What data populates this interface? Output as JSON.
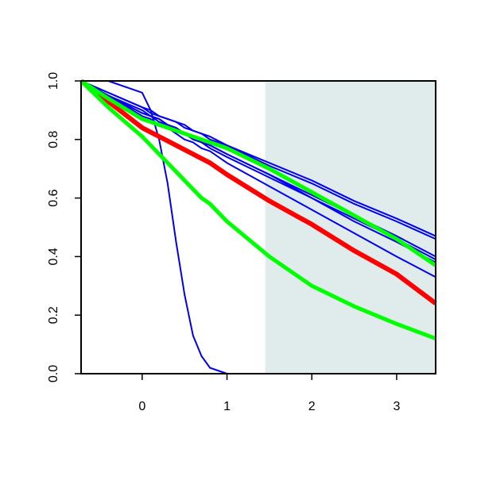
{
  "chart_data": {
    "type": "line",
    "x": [
      -0.72,
      -0.4,
      0,
      0.1,
      0.2,
      0.3,
      0.4,
      0.5,
      0.6,
      0.7,
      0.8,
      1,
      1.5,
      2,
      2.5,
      3,
      3.46
    ],
    "series": [
      {
        "color": "#0000ee",
        "width": 2,
        "values": [
          1,
          1.0,
          0.96,
          0.9,
          0.8,
          0.65,
          0.45,
          0.27,
          0.13,
          0.06,
          0.02,
          0,
          0,
          0,
          0,
          0,
          0
        ]
      },
      {
        "color": "#0000ee",
        "width": 2,
        "values": [
          1,
          0.96,
          0.91,
          0.9,
          0.88,
          0.87,
          0.86,
          0.85,
          0.83,
          0.82,
          0.81,
          0.78,
          0.72,
          0.66,
          0.59,
          0.53,
          0.47
        ]
      },
      {
        "color": "#0000ee",
        "width": 2,
        "values": [
          1,
          0.96,
          0.91,
          0.89,
          0.88,
          0.87,
          0.86,
          0.84,
          0.83,
          0.82,
          0.8,
          0.78,
          0.71,
          0.65,
          0.58,
          0.52,
          0.46
        ]
      },
      {
        "color": "#0000ee",
        "width": 2,
        "values": [
          1,
          0.95,
          0.9,
          0.88,
          0.87,
          0.85,
          0.84,
          0.82,
          0.81,
          0.8,
          0.78,
          0.75,
          0.68,
          0.61,
          0.54,
          0.47,
          0.4
        ]
      },
      {
        "color": "#0000ee",
        "width": 2,
        "values": [
          1,
          0.95,
          0.89,
          0.88,
          0.87,
          0.85,
          0.84,
          0.82,
          0.81,
          0.79,
          0.78,
          0.75,
          0.68,
          0.6,
          0.53,
          0.46,
          0.39
        ]
      },
      {
        "color": "#0000ee",
        "width": 2,
        "values": [
          1,
          0.95,
          0.89,
          0.88,
          0.86,
          0.85,
          0.83,
          0.82,
          0.8,
          0.79,
          0.77,
          0.74,
          0.67,
          0.6,
          0.52,
          0.45,
          0.38
        ]
      },
      {
        "color": "#0000ee",
        "width": 2,
        "values": [
          1,
          0.95,
          0.88,
          0.87,
          0.85,
          0.84,
          0.82,
          0.8,
          0.79,
          0.77,
          0.76,
          0.72,
          0.64,
          0.56,
          0.48,
          0.4,
          0.33
        ]
      },
      {
        "color": "#ff0000",
        "width": 6,
        "values": [
          1,
          0.93,
          0.84,
          0.825,
          0.81,
          0.795,
          0.78,
          0.765,
          0.75,
          0.735,
          0.72,
          0.68,
          0.59,
          0.51,
          0.42,
          0.34,
          0.24
        ]
      },
      {
        "color": "#00ff00",
        "width": 5,
        "values": [
          1,
          0.94,
          0.87,
          0.86,
          0.85,
          0.84,
          0.83,
          0.82,
          0.81,
          0.8,
          0.79,
          0.77,
          0.7,
          0.62,
          0.54,
          0.46,
          0.37
        ]
      },
      {
        "color": "#00ff00",
        "width": 5,
        "values": [
          1,
          0.91,
          0.81,
          0.78,
          0.75,
          0.72,
          0.69,
          0.66,
          0.63,
          0.6,
          0.58,
          0.52,
          0.4,
          0.3,
          0.23,
          0.17,
          0.12
        ]
      }
    ],
    "shaded_xrange": [
      1.45,
      3.46
    ],
    "shade_color": "#dfeceb",
    "xlim": [
      -0.72,
      3.46
    ],
    "xticks": [
      0,
      1,
      2,
      3
    ],
    "ylim": [
      0,
      1
    ],
    "yticks": [
      {
        "value": 0,
        "label": "0.0"
      },
      0.2,
      0.4,
      0.6,
      0.8,
      {
        "value": 1,
        "label": "1.0"
      }
    ]
  }
}
